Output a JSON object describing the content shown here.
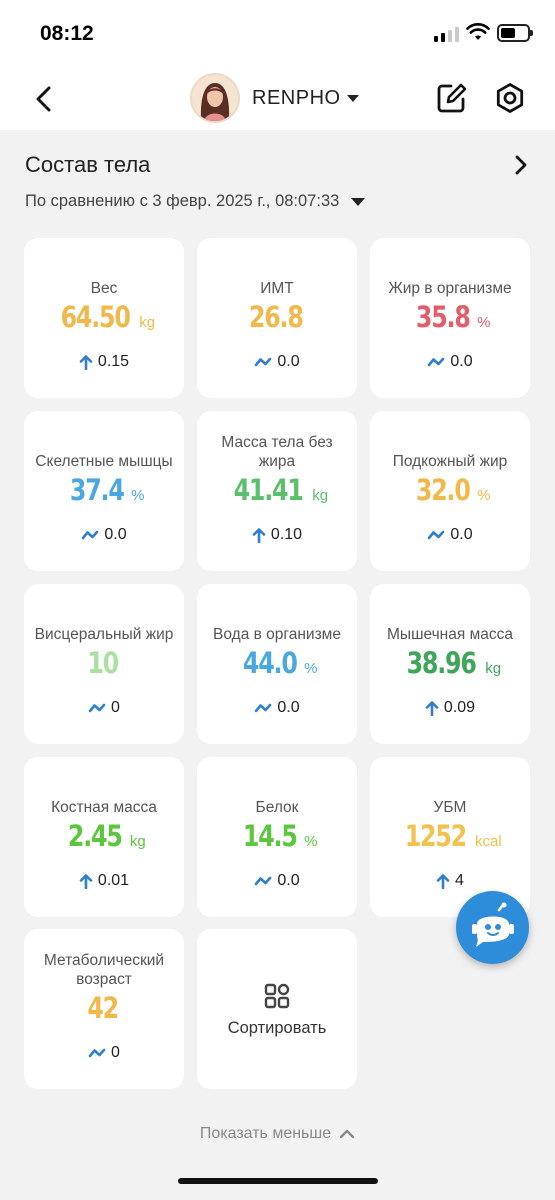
{
  "status": {
    "time": "08:12"
  },
  "header": {
    "profile_name": "RENPHO"
  },
  "section": {
    "title": "Состав тела",
    "comparison": "По сравнению с 3 февр. 2025 г., 08:07:33"
  },
  "metrics": [
    {
      "label": "Вес",
      "value": "64.50",
      "unit": "kg",
      "change": "0.15",
      "trend": "up",
      "color": "#f2b84b"
    },
    {
      "label": "ИМТ",
      "value": "26.8",
      "unit": "",
      "change": "0.0",
      "trend": "flat",
      "color": "#f2b84b"
    },
    {
      "label": "Жир в организме",
      "value": "35.8",
      "unit": "%",
      "change": "0.0",
      "trend": "flat",
      "color": "#e35d6a"
    },
    {
      "label": "Скелетные мышцы",
      "value": "37.4",
      "unit": "%",
      "change": "0.0",
      "trend": "flat",
      "color": "#4aa8e0"
    },
    {
      "label": "Масса тела без жира",
      "value": "41.41",
      "unit": "kg",
      "change": "0.10",
      "trend": "up",
      "color": "#5cbf6b"
    },
    {
      "label": "Подкожный жир",
      "value": "32.0",
      "unit": "%",
      "change": "0.0",
      "trend": "flat",
      "color": "#f2b84b"
    },
    {
      "label": "Висцеральный жир",
      "value": "10",
      "unit": "",
      "change": "0",
      "trend": "flat",
      "color": "#a9e0a0"
    },
    {
      "label": "Вода в организме",
      "value": "44.0",
      "unit": "%",
      "change": "0.0",
      "trend": "flat",
      "color": "#4aa8e0"
    },
    {
      "label": "Мышечная масса",
      "value": "38.96",
      "unit": "kg",
      "change": "0.09",
      "trend": "up",
      "color": "#3da65a"
    },
    {
      "label": "Костная масса",
      "value": "2.45",
      "unit": "kg",
      "change": "0.01",
      "trend": "up",
      "color": "#5cc63e"
    },
    {
      "label": "Белок",
      "value": "14.5",
      "unit": "%",
      "change": "0.0",
      "trend": "flat",
      "color": "#5cc63e"
    },
    {
      "label": "УБМ",
      "value": "1252",
      "unit": "kcal",
      "change": "4",
      "trend": "up",
      "color": "#f2c24f"
    },
    {
      "label": "Метаболический возраст",
      "value": "42",
      "unit": "",
      "change": "0",
      "trend": "flat",
      "color": "#f2b84b"
    }
  ],
  "sort_label": "Сортировать",
  "show_less": "Показать меньше",
  "icons": {
    "back": "chevron-left-icon",
    "dropdown": "caret-down-icon",
    "edit": "edit-icon",
    "settings": "gear-icon",
    "section_arrow": "chevron-right-icon",
    "trend_up": "arrow-up-icon",
    "trend_flat": "tilde-icon",
    "sort": "sort-grid-icon",
    "show_less": "chevron-up-icon",
    "assistant": "robot-assistant-icon"
  }
}
